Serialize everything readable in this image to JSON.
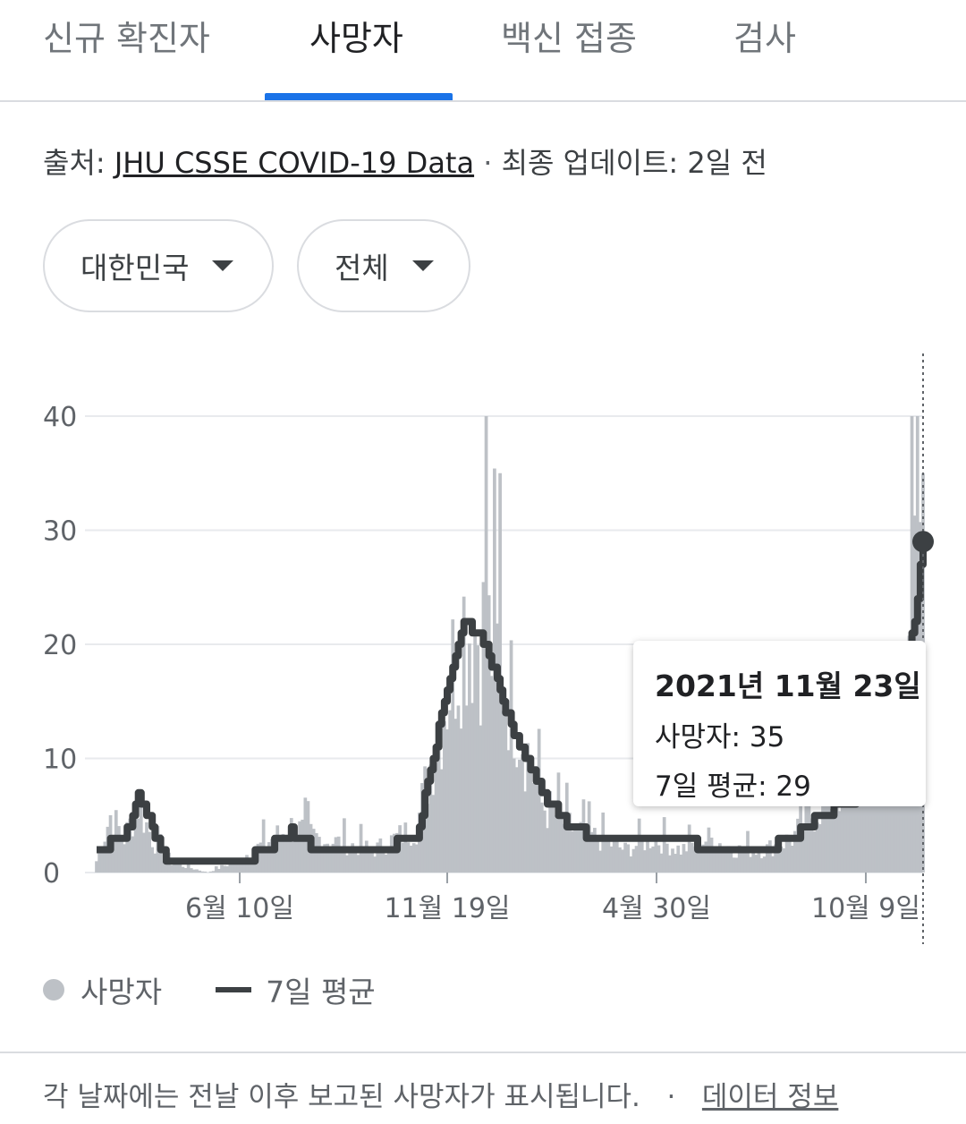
{
  "tabs": [
    {
      "label": "신규 확진자",
      "active": false
    },
    {
      "label": "사망자",
      "active": true
    },
    {
      "label": "백신 접종",
      "active": false
    },
    {
      "label": "검사",
      "active": false
    }
  ],
  "source": {
    "prefix": "출처:",
    "link_text": "JHU CSSE COVID-19 Data",
    "separator": "·",
    "update_text": "최종 업데이트: 2일 전"
  },
  "filters": {
    "region": "대한민국",
    "period": "전체"
  },
  "tooltip": {
    "date": "2021년 11월 23일",
    "deaths": "사망자: 35",
    "avg": "7일 평균: 29"
  },
  "legend": {
    "deaths_label": "사망자",
    "avg_label": "7일 평균"
  },
  "footer": {
    "text": "각 날짜에는 전날 이후 보고된 사망자가 표시됩니다.",
    "separator": "·",
    "link": "데이터 정보"
  },
  "colors": {
    "accent": "#1a73e8",
    "bars": "#bdc1c6",
    "avg_line": "#3c4043"
  },
  "chart_data": {
    "type": "bar",
    "x_ticks": [
      "6월 10일",
      "11월 19일",
      "4월 30일",
      "10월 9일"
    ],
    "y_ticks": [
      0,
      10,
      20,
      30,
      40
    ],
    "ylim": [
      0,
      40
    ],
    "grid": true,
    "series": [
      {
        "name": "사망자",
        "type": "bar",
        "keypoints": [
          [
            0,
            1
          ],
          [
            5,
            5
          ],
          [
            10,
            3
          ],
          [
            15,
            6
          ],
          [
            20,
            3
          ],
          [
            25,
            1
          ],
          [
            40,
            0
          ],
          [
            50,
            1
          ],
          [
            70,
            4
          ],
          [
            80,
            3
          ],
          [
            100,
            2
          ],
          [
            115,
            4
          ],
          [
            125,
            15
          ],
          [
            132,
            22
          ],
          [
            140,
            21
          ],
          [
            150,
            15
          ],
          [
            160,
            6
          ],
          [
            170,
            4
          ],
          [
            180,
            3
          ],
          [
            190,
            2
          ],
          [
            200,
            3
          ],
          [
            210,
            2
          ],
          [
            220,
            3
          ],
          [
            230,
            2
          ],
          [
            240,
            2
          ],
          [
            250,
            3
          ],
          [
            260,
            6
          ],
          [
            270,
            8
          ],
          [
            280,
            11
          ],
          [
            290,
            20
          ],
          [
            294,
            26
          ],
          [
            297,
            35
          ]
        ]
      },
      {
        "name": "7일 평균",
        "type": "line",
        "keypoints": [
          [
            0,
            1.5
          ],
          [
            5,
            2.5
          ],
          [
            10,
            3
          ],
          [
            15,
            6.5
          ],
          [
            20,
            4
          ],
          [
            25,
            1
          ],
          [
            40,
            0.5
          ],
          [
            50,
            0.5
          ],
          [
            70,
            3.5
          ],
          [
            80,
            2
          ],
          [
            100,
            2
          ],
          [
            115,
            3
          ],
          [
            125,
            15
          ],
          [
            132,
            22
          ],
          [
            140,
            20
          ],
          [
            150,
            12
          ],
          [
            160,
            7
          ],
          [
            170,
            4
          ],
          [
            180,
            3
          ],
          [
            190,
            3
          ],
          [
            200,
            3
          ],
          [
            210,
            3
          ],
          [
            220,
            2
          ],
          [
            230,
            2
          ],
          [
            240,
            2
          ],
          [
            250,
            3
          ],
          [
            260,
            5
          ],
          [
            270,
            6
          ],
          [
            280,
            8
          ],
          [
            290,
            16
          ],
          [
            294,
            22
          ],
          [
            297,
            29
          ]
        ]
      }
    ],
    "highlight": {
      "date": "2021년 11월 23일",
      "deaths": 35,
      "avg": 29
    }
  }
}
